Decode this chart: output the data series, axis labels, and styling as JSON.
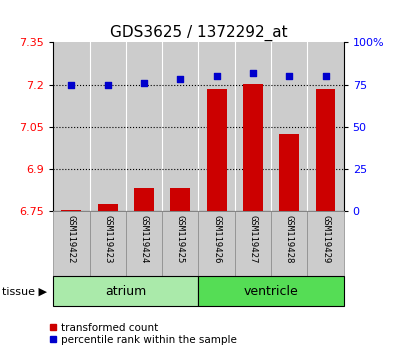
{
  "title": "GDS3625 / 1372292_at",
  "samples": [
    "GSM119422",
    "GSM119423",
    "GSM119424",
    "GSM119425",
    "GSM119426",
    "GSM119427",
    "GSM119428",
    "GSM119429"
  ],
  "transformed_count": [
    6.752,
    6.772,
    6.832,
    6.832,
    7.183,
    7.203,
    7.022,
    7.183
  ],
  "percentile_rank": [
    75,
    75,
    76,
    78,
    80,
    82,
    80,
    80
  ],
  "ylim_left": [
    6.75,
    7.35
  ],
  "ylim_right": [
    0,
    100
  ],
  "yticks_left": [
    6.75,
    6.9,
    7.05,
    7.2,
    7.35
  ],
  "yticks_right": [
    0,
    25,
    50,
    75,
    100
  ],
  "ytick_labels_left": [
    "6.75",
    "6.9",
    "7.05",
    "7.2",
    "7.35"
  ],
  "ytick_labels_right": [
    "0",
    "25",
    "50",
    "75",
    "100%"
  ],
  "hlines": [
    7.2,
    7.05,
    6.9
  ],
  "bar_color": "#cc0000",
  "scatter_color": "#0000cc",
  "bar_width": 0.55,
  "bar_bottom": 6.75,
  "groups": [
    {
      "label": "atrium",
      "indices": [
        0,
        1,
        2,
        3
      ],
      "color": "#aaeaaa"
    },
    {
      "label": "ventricle",
      "indices": [
        4,
        5,
        6,
        7
      ],
      "color": "#55dd55"
    }
  ],
  "legend_items": [
    {
      "label": "transformed count",
      "color": "#cc0000"
    },
    {
      "label": "percentile rank within the sample",
      "color": "#0000cc"
    }
  ],
  "background_color": "#ffffff",
  "column_bg": "#cccccc",
  "title_fontsize": 11,
  "tick_label_fontsize": 8,
  "sample_fontsize": 6.5,
  "group_fontsize": 9,
  "legend_fontsize": 7.5
}
